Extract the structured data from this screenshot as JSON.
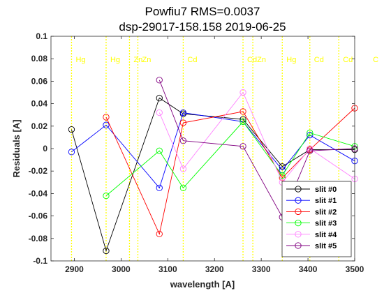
{
  "chart_data": {
    "type": "line",
    "title_lines": [
      "Powfiu7 RMS=0.0037",
      "dsp-29017-158.158  2019-06-25"
    ],
    "xlabel": "wavelength [A]",
    "ylabel": "Residuals  [A]",
    "xlim": [
      2850,
      3500
    ],
    "ylim": [
      -0.1,
      0.1
    ],
    "x_ticks": [
      2900,
      3000,
      3100,
      3200,
      3300,
      3400,
      3500
    ],
    "x_tick_labels": [
      "2900",
      "3000",
      "3100",
      "3200",
      "3300",
      "3400",
      "3500"
    ],
    "y_ticks": [
      -0.1,
      -0.08,
      -0.06,
      -0.04,
      -0.02,
      0,
      0.02,
      0.04,
      0.06,
      0.08,
      0.1
    ],
    "y_tick_labels": [
      "-0.1",
      "-0.08",
      "-0.06",
      "-0.04",
      "-0.02",
      "0",
      "0.02",
      "0.04",
      "0.06",
      "0.08",
      "0.1"
    ],
    "grid": false,
    "legend_position": "bottom-right",
    "line_color": "#ffff00",
    "reference_lines": [
      {
        "x": 2894,
        "label": "Hg"
      },
      {
        "x": 2968,
        "label": "Hg"
      },
      {
        "x": 3018,
        "label": "Zn"
      },
      {
        "x": 3036,
        "label": "Zn"
      },
      {
        "x": 3133,
        "label": "Cd"
      },
      {
        "x": 3261,
        "label": "Cd"
      },
      {
        "x": 3282,
        "label": "Zn"
      },
      {
        "x": 3345,
        "label": "Hg"
      },
      {
        "x": 3404,
        "label": "Cd"
      },
      {
        "x": 3466,
        "label": "Cd"
      },
      {
        "x": 3530,
        "label": "C"
      }
    ],
    "series": [
      {
        "name": "slit #0",
        "color": "#000000",
        "x": [
          2894,
          2968,
          3082,
          3133,
          3261,
          3345,
          3404,
          3500
        ],
        "y": [
          0.017,
          -0.091,
          0.045,
          0.031,
          0.026,
          -0.016,
          -0.001,
          -0.001
        ]
      },
      {
        "name": "slit #1",
        "color": "#0000ff",
        "x": [
          2894,
          2968,
          3082,
          3133,
          3261,
          3345,
          3404,
          3500
        ],
        "y": [
          -0.003,
          0.021,
          -0.035,
          0.032,
          0.024,
          -0.019,
          0.012,
          -0.011
        ]
      },
      {
        "name": "slit #2",
        "color": "#ff0000",
        "x": [
          2968,
          3082,
          3133,
          3261,
          3345,
          3404,
          3500
        ],
        "y": [
          0.028,
          -0.076,
          0.023,
          0.033,
          -0.026,
          -0.001,
          0.036
        ]
      },
      {
        "name": "slit #3",
        "color": "#00ff00",
        "x": [
          2968,
          3082,
          3133,
          3261,
          3345,
          3404,
          3500
        ],
        "y": [
          -0.042,
          -0.002,
          -0.035,
          0.024,
          -0.024,
          0.014,
          0.002
        ]
      },
      {
        "name": "slit #4",
        "color": "#ff80ff",
        "x": [
          3082,
          3133,
          3261,
          3345,
          3404,
          3500
        ],
        "y": [
          0.032,
          -0.018,
          0.05,
          -0.03,
          0.0,
          -0.027
        ]
      },
      {
        "name": "slit #5",
        "color": "#800080",
        "x": [
          3082,
          3133,
          3261,
          3345,
          3404,
          3500
        ],
        "y": [
          0.061,
          0.007,
          0.002,
          -0.061,
          -0.002,
          0.0
        ]
      }
    ]
  }
}
